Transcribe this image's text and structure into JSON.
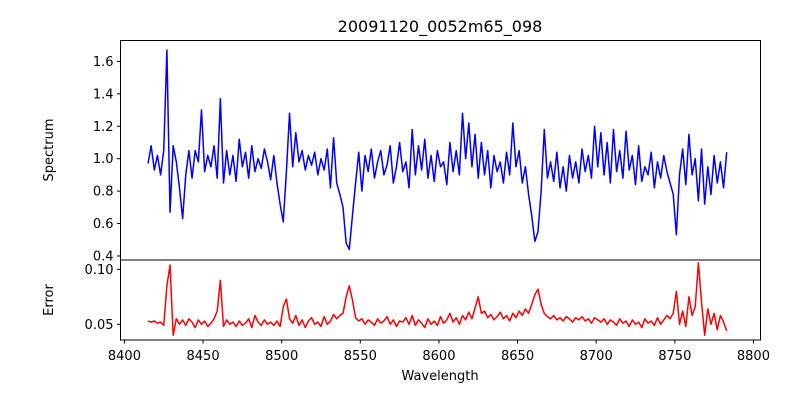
{
  "chart_data": [
    {
      "type": "line",
      "title": "20091120_0052m65_098",
      "xlabel": "",
      "ylabel": "Spectrum",
      "xlim": [
        8397.5,
        8804.5
      ],
      "ylim": [
        0.375,
        1.729
      ],
      "yticks": [
        0.4,
        0.6,
        0.8,
        1.0,
        1.2,
        1.4,
        1.6
      ],
      "ytick_labels": [
        "0.4",
        "0.6",
        "0.8",
        "1.0",
        "1.2",
        "1.4",
        "1.6"
      ],
      "color": "#0000ff",
      "grid": false,
      "wavelength_start": 8415,
      "wavelength_step": 2,
      "values": [
        0.97,
        1.08,
        0.93,
        1.02,
        0.9,
        1.05,
        1.67,
        0.67,
        1.08,
        0.98,
        0.82,
        0.63,
        0.9,
        1.05,
        0.88,
        1.05,
        0.98,
        1.3,
        0.92,
        1.02,
        0.95,
        1.08,
        0.88,
        1.37,
        0.85,
        1.05,
        0.9,
        1.02,
        0.86,
        1.12,
        0.95,
        1.04,
        0.88,
        1.08,
        0.92,
        1.0,
        0.94,
        1.06,
        0.98,
        0.87,
        1.02,
        0.85,
        0.72,
        0.61,
        0.92,
        1.28,
        0.95,
        1.16,
        0.98,
        1.05,
        0.93,
        1.02,
        0.96,
        1.04,
        0.9,
        1.0,
        0.93,
        1.06,
        0.82,
        1.13,
        0.85,
        0.78,
        0.7,
        0.48,
        0.44,
        0.65,
        0.85,
        1.04,
        0.8,
        1.02,
        0.92,
        1.06,
        0.88,
        0.98,
        1.05,
        0.9,
        0.96,
        1.08,
        0.85,
        0.95,
        1.1,
        0.92,
        0.98,
        0.82,
        1.18,
        0.9,
        1.08,
        0.93,
        1.12,
        0.88,
        1.02,
        0.86,
        1.05,
        0.95,
        0.98,
        0.84,
        1.1,
        0.92,
        1.05,
        0.9,
        1.28,
        1.0,
        1.22,
        0.95,
        1.15,
        0.88,
        1.1,
        0.9,
        1.05,
        0.82,
        1.02,
        0.92,
        0.98,
        0.85,
        1.04,
        0.9,
        1.22,
        0.95,
        1.05,
        0.85,
        0.95,
        0.78,
        0.65,
        0.49,
        0.55,
        0.8,
        1.18,
        0.88,
        0.98,
        0.86,
        1.04,
        0.82,
        0.95,
        0.8,
        1.02,
        0.88,
        0.98,
        0.85,
        1.06,
        0.92,
        1.02,
        0.88,
        1.2,
        0.95,
        1.16,
        0.9,
        1.1,
        0.85,
        1.18,
        0.92,
        1.05,
        0.88,
        1.17,
        0.93,
        1.02,
        0.84,
        1.08,
        0.86,
        0.95,
        0.9,
        1.04,
        0.82,
        0.98,
        0.88,
        1.02,
        0.92,
        0.85,
        0.78,
        0.53,
        0.9,
        1.06,
        0.84,
        1.15,
        0.9,
        1.0,
        0.74,
        1.06,
        0.72,
        0.95,
        0.78,
        1.02,
        0.85,
        0.98,
        0.82,
        1.04
      ]
    },
    {
      "type": "line",
      "xlabel": "Wavelength",
      "ylabel": "Error",
      "xlim": [
        8397.5,
        8804.5
      ],
      "ylim": [
        0.0357,
        0.1085
      ],
      "xticks": [
        8400,
        8450,
        8500,
        8550,
        8600,
        8650,
        8700,
        8750,
        8800
      ],
      "xtick_labels": [
        "8400",
        "8450",
        "8500",
        "8550",
        "8600",
        "8650",
        "8700",
        "8750",
        "8800"
      ],
      "yticks": [
        0.05,
        0.1
      ],
      "ytick_labels": [
        "0.05",
        "0.10"
      ],
      "color": "#ff0000",
      "grid": false,
      "wavelength_start": 8415,
      "wavelength_step": 2,
      "values": [
        0.053,
        0.052,
        0.053,
        0.051,
        0.052,
        0.049,
        0.085,
        0.104,
        0.04,
        0.055,
        0.05,
        0.054,
        0.049,
        0.055,
        0.052,
        0.047,
        0.054,
        0.05,
        0.053,
        0.048,
        0.051,
        0.055,
        0.062,
        0.09,
        0.048,
        0.054,
        0.05,
        0.052,
        0.048,
        0.053,
        0.049,
        0.051,
        0.055,
        0.047,
        0.058,
        0.052,
        0.049,
        0.054,
        0.05,
        0.052,
        0.049,
        0.053,
        0.048,
        0.066,
        0.073,
        0.055,
        0.051,
        0.058,
        0.049,
        0.054,
        0.047,
        0.053,
        0.056,
        0.05,
        0.052,
        0.048,
        0.057,
        0.05,
        0.053,
        0.059,
        0.055,
        0.058,
        0.06,
        0.075,
        0.085,
        0.072,
        0.056,
        0.053,
        0.055,
        0.05,
        0.054,
        0.052,
        0.049,
        0.055,
        0.051,
        0.053,
        0.057,
        0.05,
        0.054,
        0.048,
        0.053,
        0.052,
        0.056,
        0.05,
        0.058,
        0.049,
        0.054,
        0.051,
        0.047,
        0.055,
        0.05,
        0.053,
        0.049,
        0.057,
        0.051,
        0.054,
        0.06,
        0.052,
        0.056,
        0.05,
        0.058,
        0.054,
        0.061,
        0.055,
        0.065,
        0.075,
        0.06,
        0.062,
        0.056,
        0.059,
        0.054,
        0.057,
        0.061,
        0.055,
        0.058,
        0.053,
        0.06,
        0.056,
        0.062,
        0.058,
        0.064,
        0.06,
        0.068,
        0.077,
        0.082,
        0.068,
        0.06,
        0.057,
        0.055,
        0.058,
        0.054,
        0.056,
        0.053,
        0.057,
        0.055,
        0.052,
        0.056,
        0.054,
        0.057,
        0.053,
        0.055,
        0.051,
        0.056,
        0.054,
        0.052,
        0.055,
        0.05,
        0.054,
        0.052,
        0.049,
        0.055,
        0.051,
        0.053,
        0.048,
        0.054,
        0.05,
        0.052,
        0.047,
        0.055,
        0.051,
        0.053,
        0.049,
        0.056,
        0.05,
        0.054,
        0.058,
        0.055,
        0.06,
        0.08,
        0.05,
        0.062,
        0.048,
        0.075,
        0.058,
        0.066,
        0.106,
        0.07,
        0.04,
        0.064,
        0.05,
        0.06,
        0.045,
        0.058,
        0.052,
        0.044
      ]
    }
  ]
}
